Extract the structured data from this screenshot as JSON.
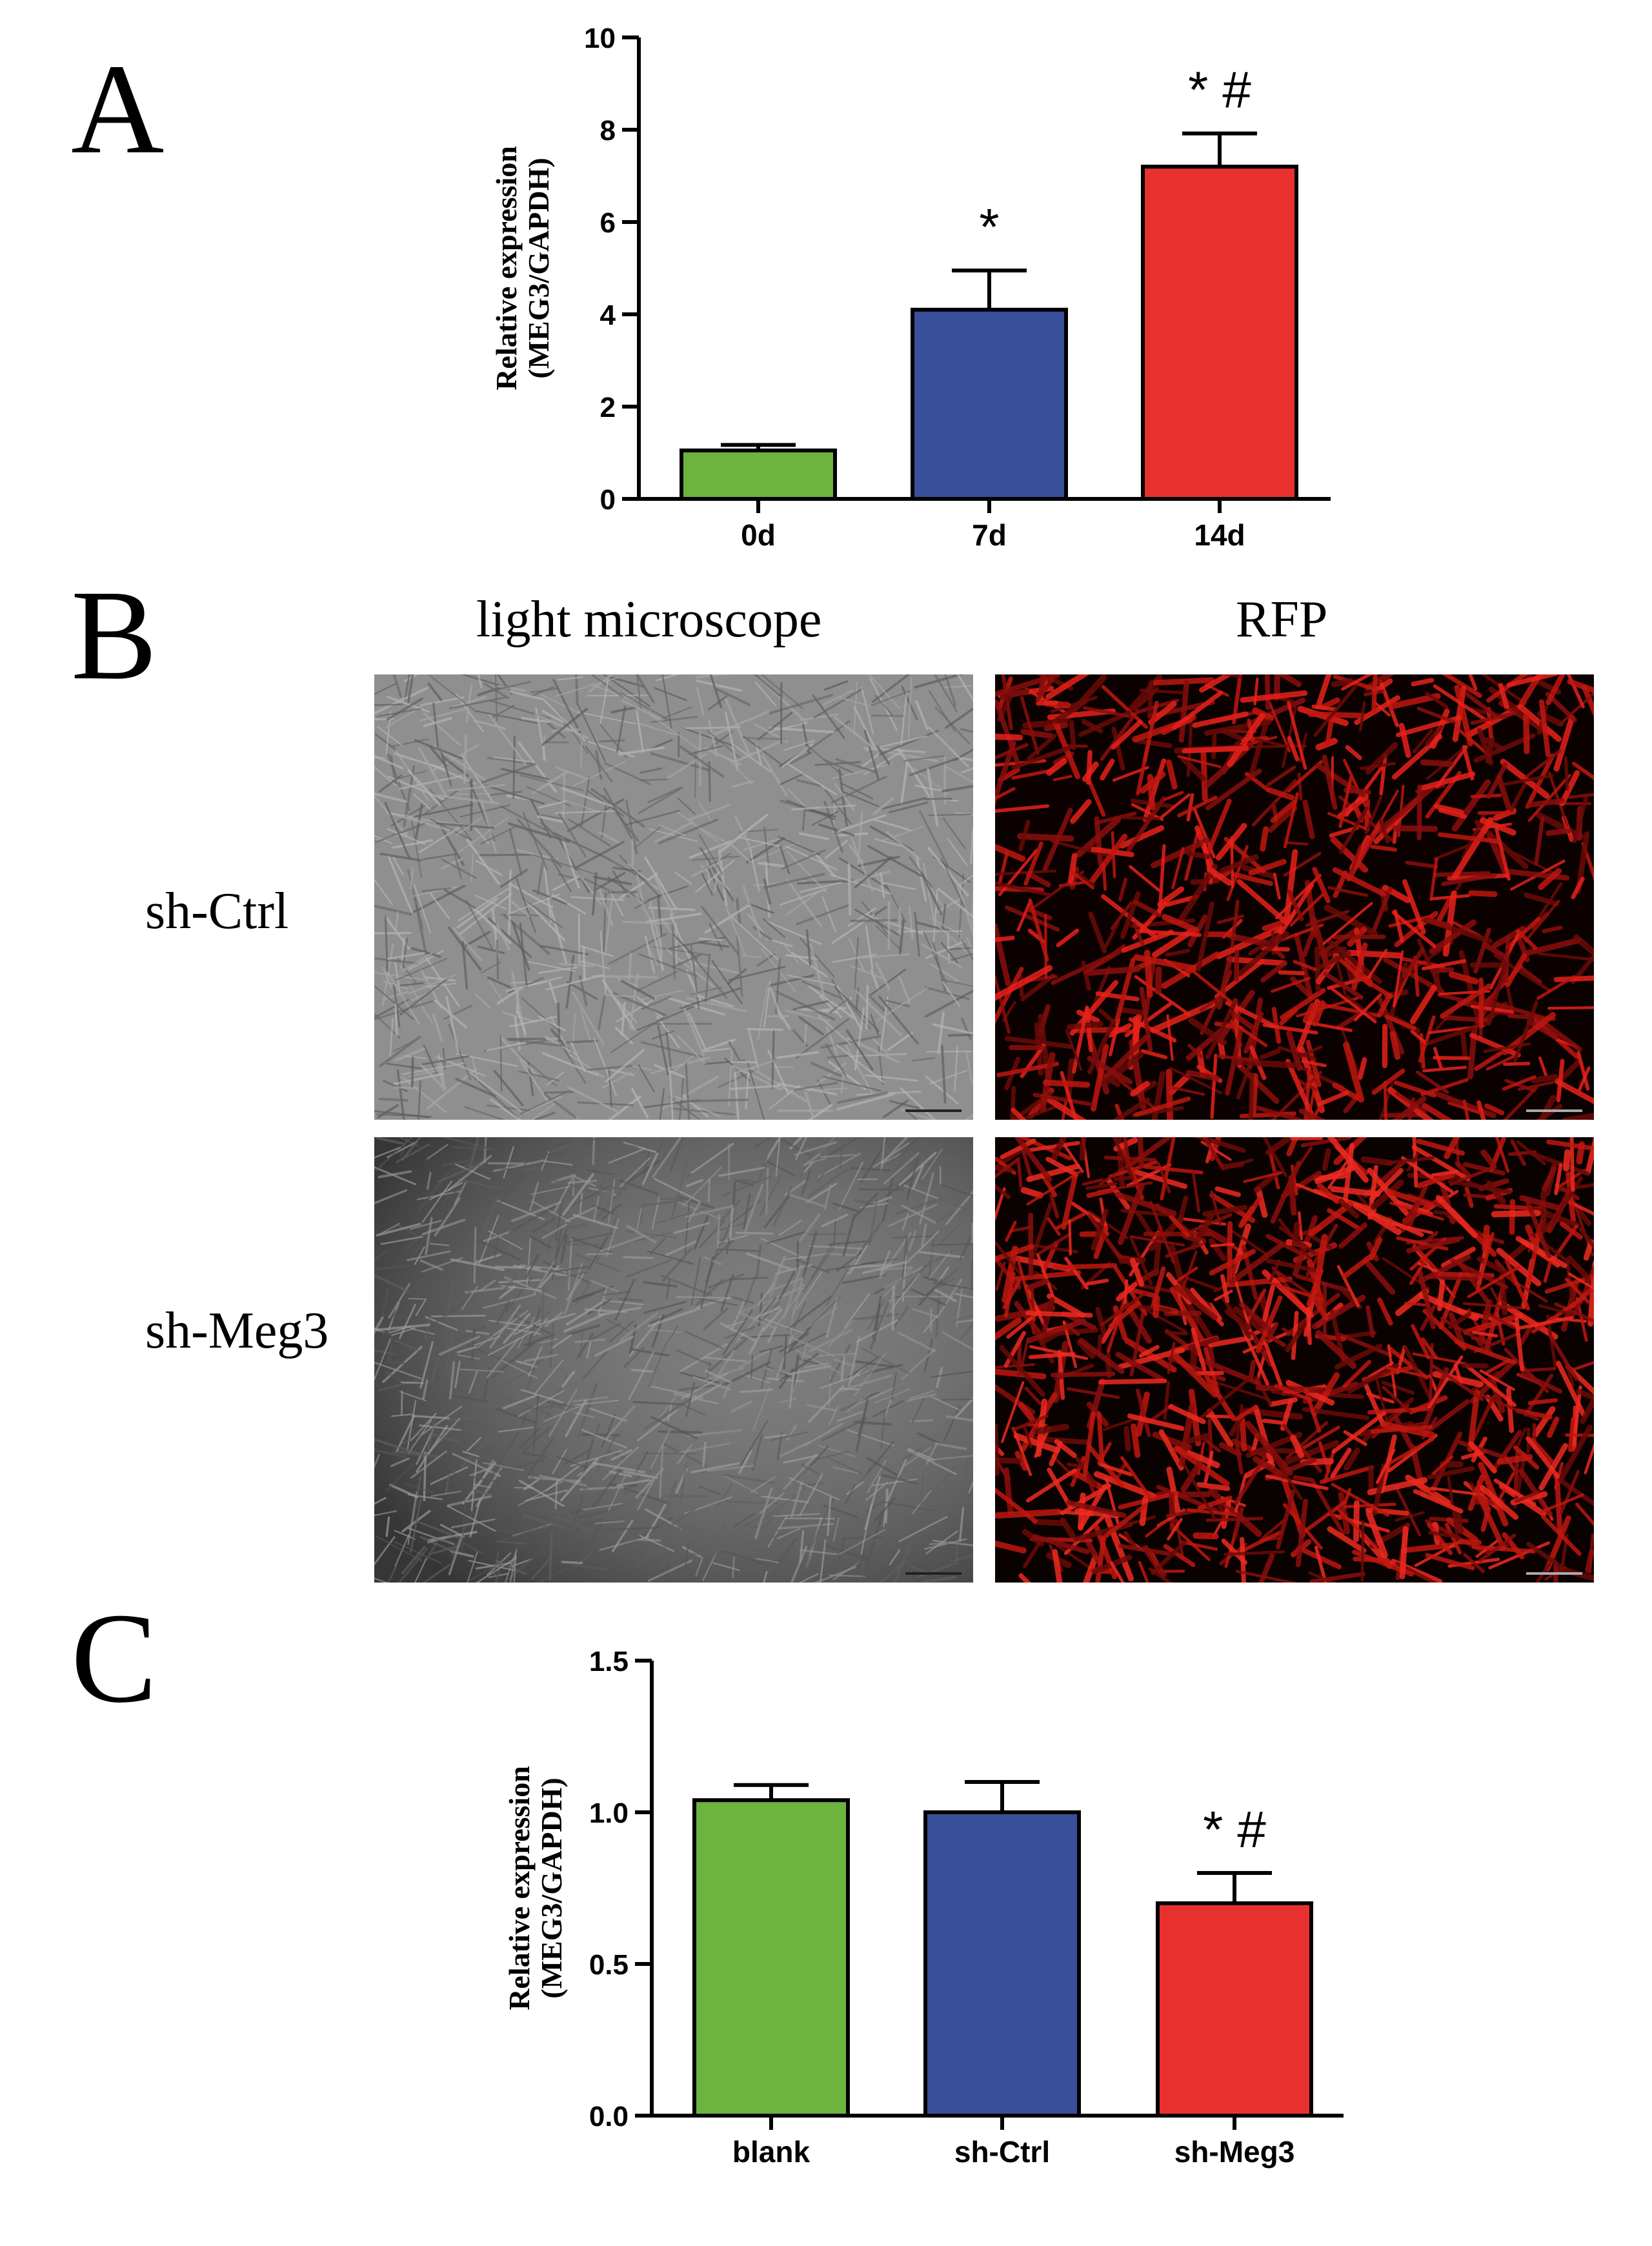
{
  "panels": {
    "a": {
      "letter": "A"
    },
    "b": {
      "letter": "B",
      "columns": [
        "light microscope",
        "RFP"
      ],
      "rows": [
        "sh-Ctrl",
        "sh-Meg3"
      ]
    },
    "c": {
      "letter": "C"
    }
  },
  "colors": {
    "green": "#6cb33f",
    "blue": "#3a4f9a",
    "red": "#e8312f"
  },
  "chart_data": [
    {
      "type": "bar",
      "categories": [
        "0d",
        "7d",
        "14d"
      ],
      "values": [
        1.05,
        4.1,
        7.2
      ],
      "errors": [
        0.12,
        0.85,
        0.72
      ],
      "annotations": [
        "",
        "*",
        "* #"
      ],
      "ylabel": [
        "Relative expression",
        "(MEG3/GAPDH)"
      ],
      "ylim": [
        0,
        10
      ],
      "yticks": [
        0,
        2,
        4,
        6,
        8,
        10
      ],
      "ytick_labels": [
        "0",
        "2",
        "4",
        "6",
        "8",
        "10"
      ]
    },
    {
      "type": "bar",
      "categories": [
        "blank",
        "sh-Ctrl",
        "sh-Meg3"
      ],
      "values": [
        1.04,
        1.0,
        0.7
      ],
      "errors": [
        0.05,
        0.1,
        0.1
      ],
      "annotations": [
        "",
        "",
        "* #"
      ],
      "ylabel": [
        "Relative expression",
        "(MEG3/GAPDH)"
      ],
      "ylim": [
        0,
        1.5
      ],
      "yticks": [
        0,
        0.5,
        1.0,
        1.5
      ],
      "ytick_labels": [
        "0.0",
        "0.5",
        "1.0",
        "1.5"
      ]
    }
  ]
}
